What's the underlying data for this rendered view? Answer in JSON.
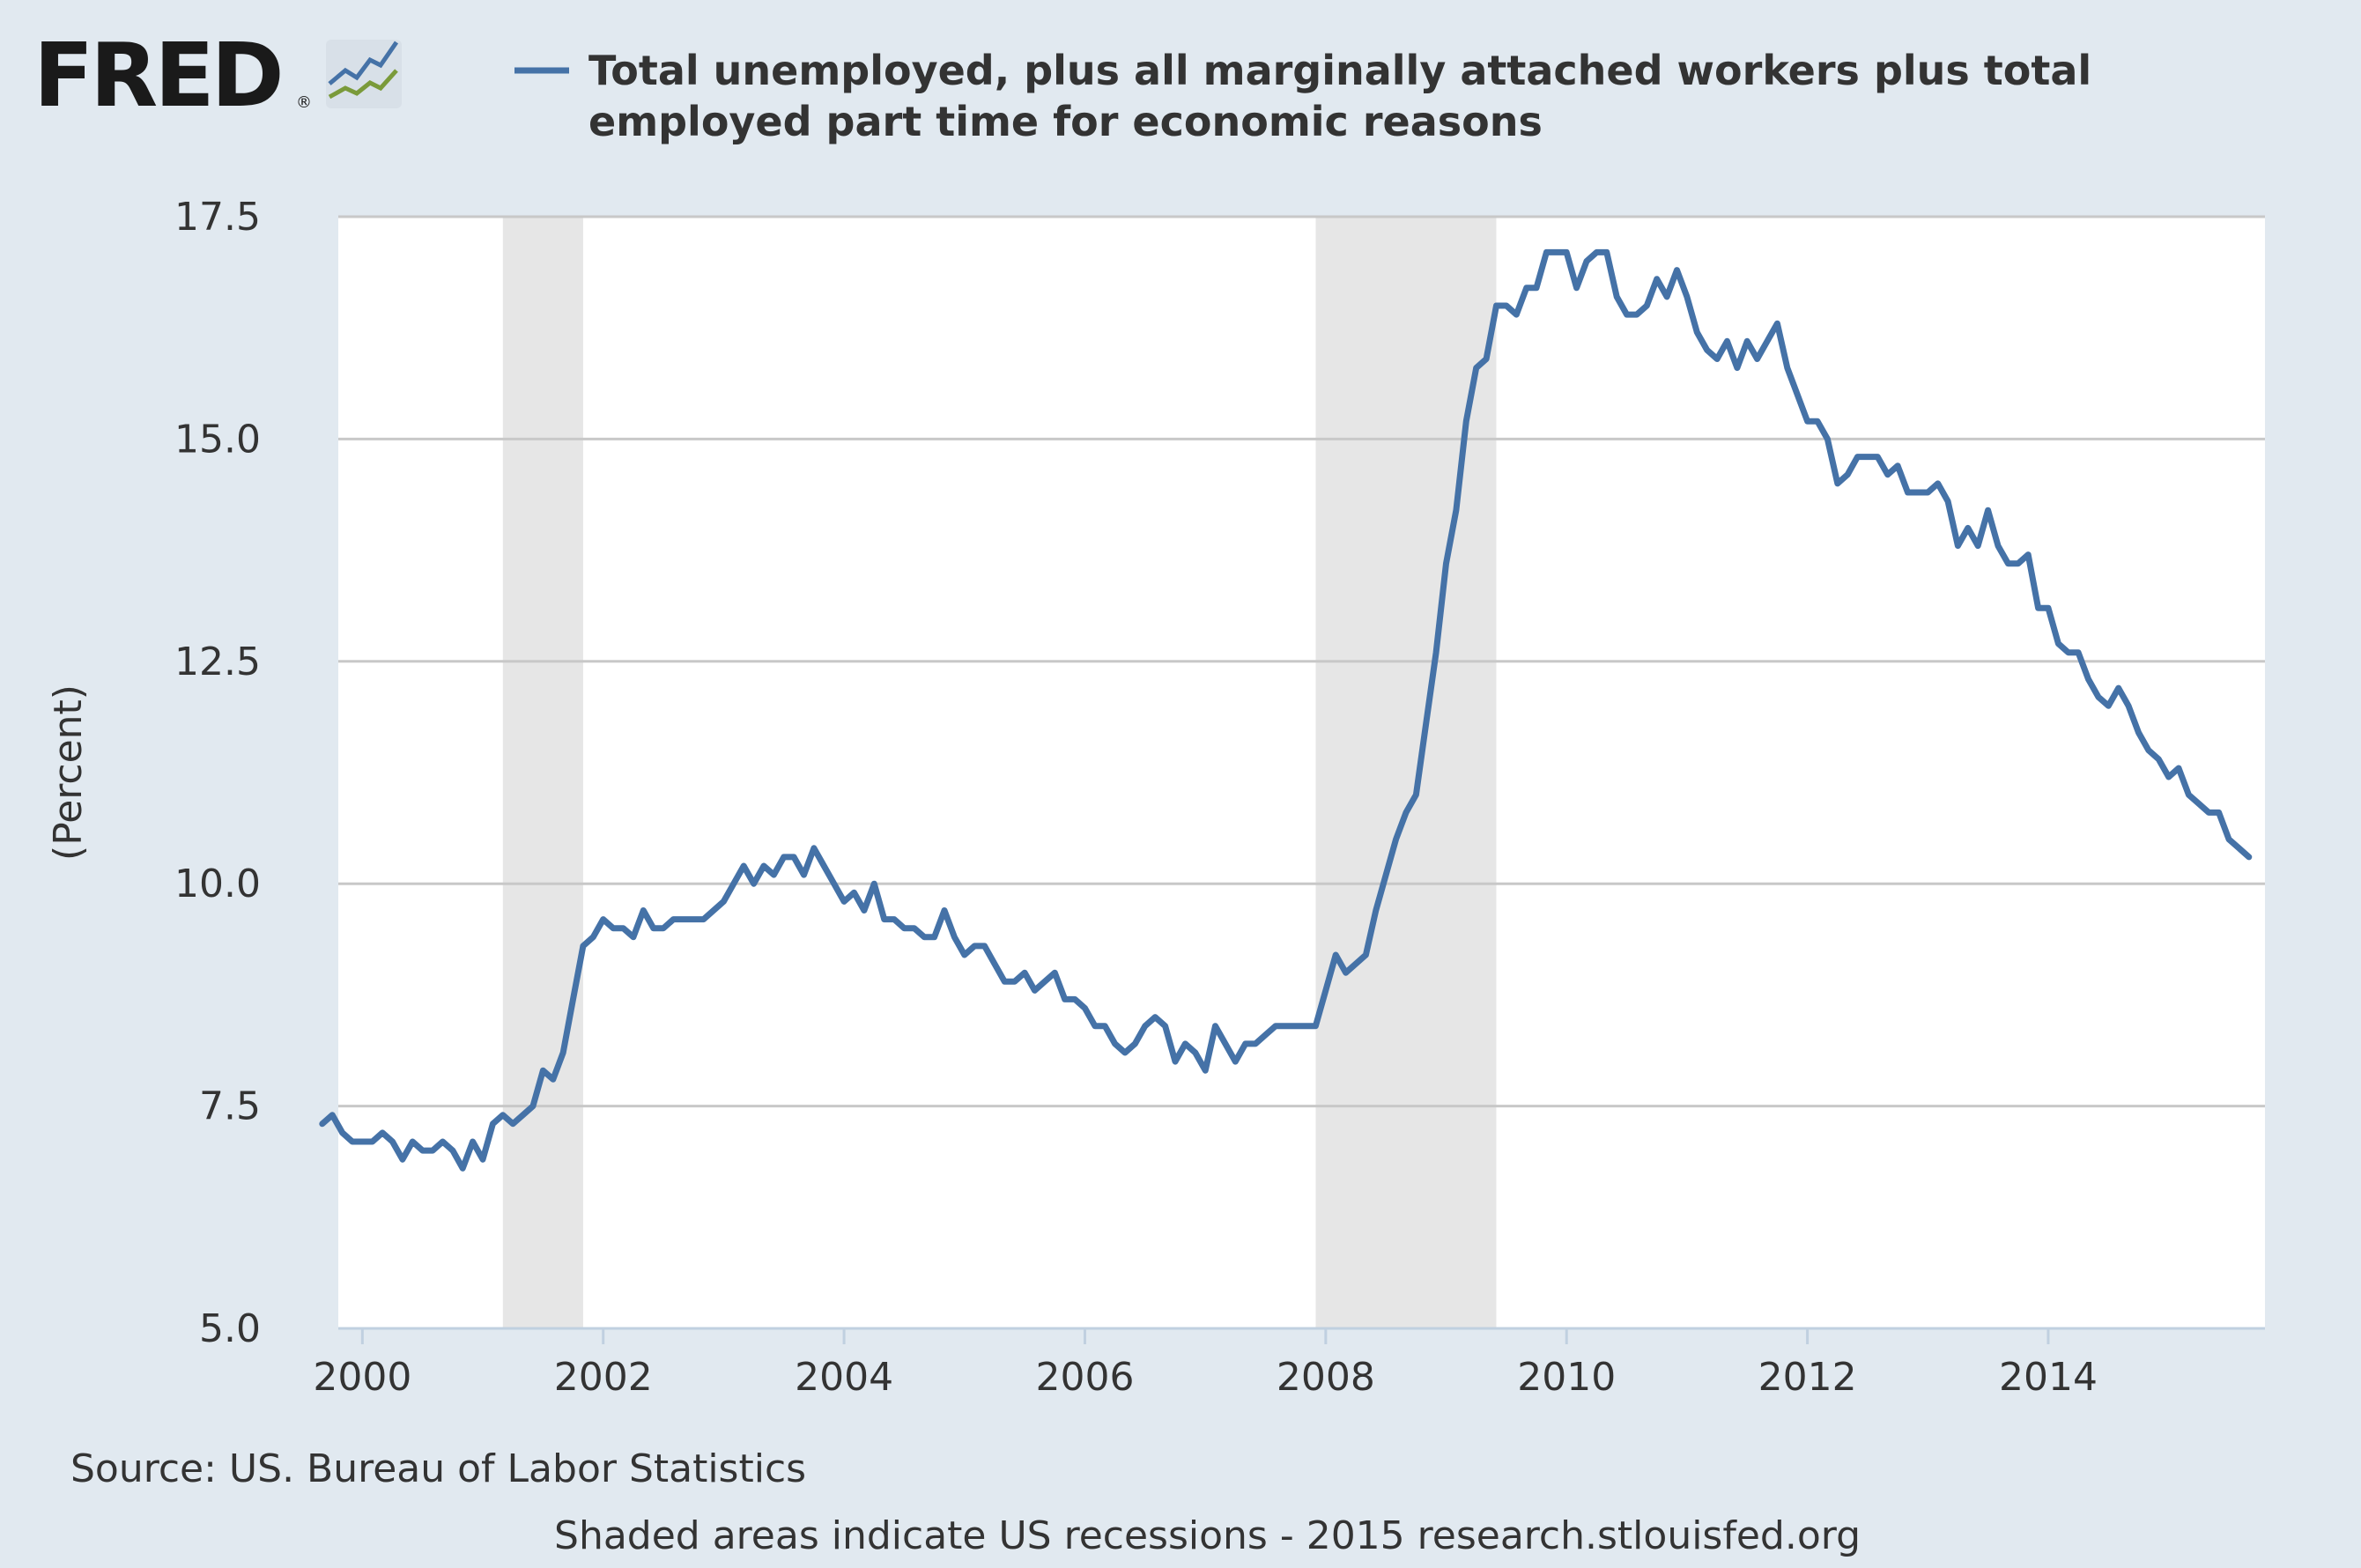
{
  "logo": {
    "text": "FRED",
    "mark": "®",
    "icon": "fred-chart-icon"
  },
  "chart_data": {
    "type": "line",
    "title": "",
    "xlabel": "",
    "ylabel": "(Percent)",
    "ylim": [
      5.0,
      17.5
    ],
    "yticks": [
      "5.0",
      "7.5",
      "10.0",
      "12.5",
      "15.0",
      "17.5"
    ],
    "xlim": [
      1999.8,
      2015.8
    ],
    "xticks": [
      "2000",
      "2002",
      "2004",
      "2006",
      "2008",
      "2010",
      "2012",
      "2014"
    ],
    "grid": "horizontal",
    "legend_position": "top",
    "series": [
      {
        "name": "Total unemployed, plus all marginally attached workers plus total employed part time for economic reasons",
        "color": "#4572a7",
        "start": "1999-09",
        "frequency": "monthly",
        "values": [
          7.3,
          7.4,
          7.2,
          7.1,
          7.1,
          7.1,
          7.2,
          7.1,
          6.9,
          7.1,
          7.0,
          7.0,
          7.1,
          7.0,
          6.8,
          7.1,
          6.9,
          7.3,
          7.4,
          7.3,
          7.4,
          7.5,
          7.9,
          7.8,
          8.1,
          8.7,
          9.3,
          9.4,
          9.6,
          9.5,
          9.5,
          9.4,
          9.7,
          9.5,
          9.5,
          9.6,
          9.6,
          9.6,
          9.6,
          9.7,
          9.8,
          10.0,
          10.2,
          10.0,
          10.2,
          10.1,
          10.3,
          10.3,
          10.1,
          10.4,
          10.2,
          10.0,
          9.8,
          9.9,
          9.7,
          10.0,
          9.6,
          9.6,
          9.5,
          9.5,
          9.4,
          9.4,
          9.7,
          9.4,
          9.2,
          9.3,
          9.3,
          9.1,
          8.9,
          8.9,
          9.0,
          8.8,
          8.9,
          9.0,
          8.7,
          8.7,
          8.6,
          8.4,
          8.4,
          8.2,
          8.1,
          8.2,
          8.4,
          8.5,
          8.4,
          8.0,
          8.2,
          8.1,
          7.9,
          8.4,
          8.2,
          8.0,
          8.2,
          8.2,
          8.3,
          8.4,
          8.4,
          8.4,
          8.4,
          8.4,
          8.8,
          9.2,
          9.0,
          9.1,
          9.2,
          9.7,
          10.1,
          10.5,
          10.8,
          11.0,
          11.8,
          12.6,
          13.6,
          14.2,
          15.2,
          15.8,
          15.9,
          16.5,
          16.5,
          16.4,
          16.7,
          16.7,
          17.1,
          17.1,
          17.1,
          16.7,
          17.0,
          17.1,
          17.1,
          16.6,
          16.4,
          16.4,
          16.5,
          16.8,
          16.6,
          16.9,
          16.6,
          16.2,
          16.0,
          15.9,
          16.1,
          15.8,
          16.1,
          15.9,
          16.1,
          16.3,
          15.8,
          15.5,
          15.2,
          15.2,
          15.0,
          14.5,
          14.6,
          14.8,
          14.8,
          14.8,
          14.6,
          14.7,
          14.4,
          14.4,
          14.4,
          14.5,
          14.3,
          13.8,
          14.0,
          13.8,
          14.2,
          13.8,
          13.6,
          13.6,
          13.7,
          13.1,
          13.1,
          12.7,
          12.6,
          12.6,
          12.3,
          12.1,
          12.0,
          12.2,
          12.0,
          11.7,
          11.5,
          11.4,
          11.2,
          11.3,
          11.0,
          10.9,
          10.8,
          10.8,
          10.5,
          10.4,
          10.3
        ]
      }
    ],
    "recessions": [
      {
        "start": "2001-03",
        "end": "2001-11"
      },
      {
        "start": "2007-12",
        "end": "2009-06"
      }
    ]
  },
  "source": "Source: US. Bureau of Labor Statistics",
  "footer_note": "Shaded areas indicate US recessions - 2015 research.stlouisfed.org"
}
